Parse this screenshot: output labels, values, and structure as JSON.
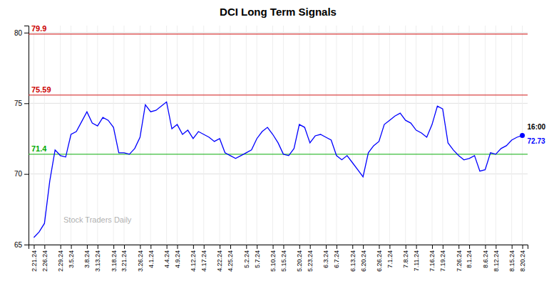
{
  "chart_data": {
    "type": "line",
    "title": "DCI Long Term Signals",
    "color": "blue",
    "grid": true,
    "ylim": [
      65,
      80.5
    ],
    "yticks": [
      65,
      70,
      75,
      80
    ],
    "categories": [
      "2.21.24",
      null,
      "2.26.24",
      null,
      null,
      "2.29.24",
      null,
      "3.5.24",
      null,
      null,
      "3.8.24",
      null,
      "3.13.24",
      null,
      null,
      "3.18.24",
      null,
      "3.21.24",
      null,
      null,
      "3.26.24",
      null,
      "4.1.24",
      null,
      null,
      "4.4.24",
      null,
      "4.9.24",
      null,
      null,
      "4.12.24",
      null,
      "4.17.24",
      null,
      null,
      "4.22.24",
      null,
      "4.25.24",
      null,
      null,
      "5.2.24",
      null,
      "5.7.24",
      null,
      null,
      "5.10.24",
      null,
      "5.15.24",
      null,
      null,
      "5.20.24",
      null,
      "5.23.24",
      null,
      null,
      "6.3.24",
      null,
      "6.7.24",
      null,
      null,
      "6.13.24",
      null,
      "6.20.24",
      null,
      null,
      "6.26.24",
      null,
      "7.1.24",
      null,
      null,
      "7.8.24",
      null,
      "7.11.24",
      null,
      null,
      "7.16.24",
      null,
      "7.19.24",
      null,
      null,
      "7.26.24",
      null,
      "8.1.24",
      null,
      null,
      "8.6.24",
      null,
      "8.12.24",
      null,
      null,
      "8.15.24",
      null,
      "8.20.24"
    ],
    "values": [
      65.5,
      65.9,
      66.5,
      69.5,
      71.7,
      71.3,
      71.2,
      72.8,
      73.0,
      73.7,
      74.4,
      73.6,
      73.4,
      74.0,
      73.8,
      73.3,
      71.5,
      71.5,
      71.4,
      71.8,
      72.6,
      74.9,
      74.4,
      74.5,
      74.8,
      75.1,
      73.2,
      73.5,
      72.8,
      73.1,
      72.5,
      73.0,
      72.8,
      72.6,
      72.3,
      72.5,
      71.5,
      71.3,
      71.1,
      71.3,
      71.5,
      71.7,
      72.5,
      73.0,
      73.3,
      72.8,
      72.2,
      71.4,
      71.3,
      71.8,
      73.5,
      73.3,
      72.2,
      72.7,
      72.8,
      72.6,
      72.4,
      71.3,
      71.0,
      71.3,
      70.8,
      70.3,
      69.8,
      71.5,
      72.0,
      72.3,
      73.5,
      73.8,
      74.1,
      74.3,
      73.8,
      73.6,
      73.1,
      72.9,
      72.6,
      73.5,
      74.8,
      74.6,
      72.2,
      71.7,
      71.3,
      71.0,
      71.1,
      71.3,
      70.2,
      70.3,
      71.5,
      71.4,
      71.8,
      72.0,
      72.4,
      72.6,
      72.73
    ],
    "annotations": [
      {
        "type": "hline",
        "value": 79.9,
        "color": "#cc0000"
      },
      {
        "type": "hline",
        "value": 75.59,
        "color": "#cc0000"
      },
      {
        "type": "hline",
        "value": 71.4,
        "color": "#00aa00"
      },
      {
        "type": "point_label",
        "text": "16:00"
      },
      {
        "type": "point_label",
        "value": 72.73,
        "color": "blue"
      },
      {
        "type": "watermark",
        "text": "Stock Traders Daily"
      }
    ]
  }
}
